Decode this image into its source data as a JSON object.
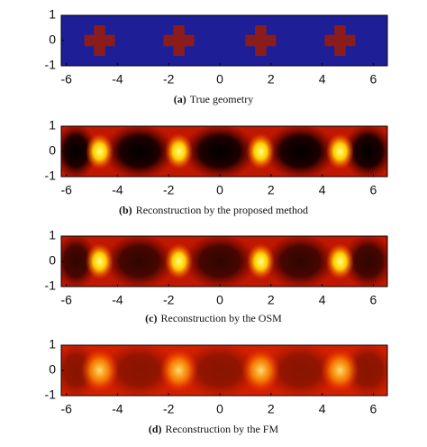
{
  "chart_data": [
    {
      "type": "geometry",
      "caption_label": "(a)",
      "caption": "True geometry",
      "x": [
        -4.7,
        -1.6,
        1.6,
        4.7
      ],
      "values": [
        0,
        0,
        0,
        0
      ],
      "background_color": "#1e1e96",
      "object_color": "#8b1c1c",
      "xlim": [
        -6.2,
        6.55
      ],
      "ylim": [
        -1,
        1
      ],
      "xticks": [
        -6,
        -4,
        -2,
        0,
        2,
        4,
        6
      ],
      "yticks": [
        -1,
        0,
        1
      ]
    },
    {
      "type": "heatmap",
      "caption_label": "(b)",
      "caption": "Reconstruction by the proposed method",
      "x": [
        -4.7,
        -1.6,
        1.6,
        4.7
      ],
      "values": [
        0,
        0,
        0,
        0
      ],
      "colormap": "hot",
      "xlim": [
        -6.2,
        6.55
      ],
      "ylim": [
        -1,
        1
      ],
      "xticks": [
        -6,
        -4,
        -2,
        0,
        2,
        4,
        6
      ],
      "yticks": [
        -1,
        0,
        1
      ]
    },
    {
      "type": "heatmap",
      "caption_label": "(c)",
      "caption": "Reconstruction by the OSM",
      "x": [
        -4.7,
        -1.6,
        1.6,
        4.7
      ],
      "values": [
        0,
        0,
        0,
        0
      ],
      "colormap": "hot",
      "xlim": [
        -6.2,
        6.55
      ],
      "ylim": [
        -1,
        1
      ],
      "xticks": [
        -6,
        -4,
        -2,
        0,
        2,
        4,
        6
      ],
      "yticks": [
        -1,
        0,
        1
      ]
    },
    {
      "type": "heatmap",
      "caption_label": "(d)",
      "caption": "Reconstruction by the FM",
      "x": [
        -4.7,
        -1.6,
        1.6,
        4.7
      ],
      "values": [
        0,
        0,
        0,
        0
      ],
      "colormap": "hot",
      "xlim": [
        -6.2,
        6.55
      ],
      "ylim": [
        -1,
        1
      ],
      "xticks": [
        -6,
        -4,
        -2,
        0,
        2,
        4,
        6
      ],
      "yticks": [
        -1,
        0,
        1
      ]
    }
  ]
}
